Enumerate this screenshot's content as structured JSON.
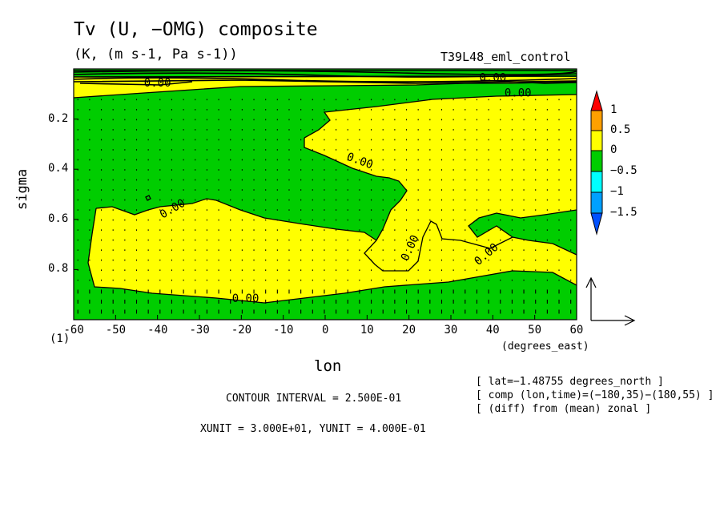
{
  "chart_data": {
    "type": "heatmap",
    "title": "Tv (U, −OMG) composite",
    "units": "(K, (m s-1, Pa s-1))",
    "experiment": "T39L48_eml_control",
    "xlabel": "lon",
    "xunits": "(degrees_east)",
    "ylabel": "sigma",
    "x_ticks": [
      -60,
      -50,
      -40,
      -30,
      -20,
      -10,
      0,
      10,
      20,
      30,
      40,
      50,
      60
    ],
    "y_ticks": [
      0.2,
      0.4,
      0.6,
      0.8
    ],
    "y_bottom_tick_label": "(1)",
    "xlim": [
      -60,
      60
    ],
    "ylim": [
      1.0,
      0.0
    ],
    "colorbar_levels": [
      "1",
      "0.5",
      "0",
      "−0.5",
      "−1",
      "−1.5"
    ],
    "colorbar_colors": [
      "#ff0000",
      "#ffa000",
      "#ffff00",
      "#00cd00",
      "#00ffff",
      "#00a0ff",
      "#0050ff"
    ],
    "contour_labels": [
      "0.00",
      "0.00",
      "0.00",
      "0.00",
      "0.00",
      "0.00",
      "0.00",
      "0.00",
      "0.00",
      "0.00"
    ],
    "contour_interval": "CONTOUR INTERVAL = 2.500E-01",
    "vector_units": "XUNIT = 3.000E+01, YUNIT = 4.000E-01",
    "info_lines": [
      "[ lat=−1.48755 degrees_north ]",
      "[ comp (lon,time)=(−180,35)−(180,55) ]",
      "[ (diff) from (mean) zonal ]"
    ],
    "regions": [
      {
        "name": "upper-positive",
        "sign": "positive",
        "lon_range": [
          -60,
          60
        ],
        "sigma_range": [
          0.05,
          0.1
        ]
      },
      {
        "name": "central-positive",
        "sign": "positive",
        "lon_range": [
          -5,
          40
        ],
        "sigma_range": [
          0.1,
          0.75
        ]
      },
      {
        "name": "lower-positive",
        "sign": "positive",
        "lon_range": [
          -53,
          60
        ],
        "sigma_range": [
          0.5,
          0.9
        ]
      },
      {
        "name": "negative-background",
        "sign": "negative",
        "lon_range": [
          -60,
          60
        ],
        "sigma_range": [
          0.1,
          1.0
        ]
      }
    ]
  }
}
